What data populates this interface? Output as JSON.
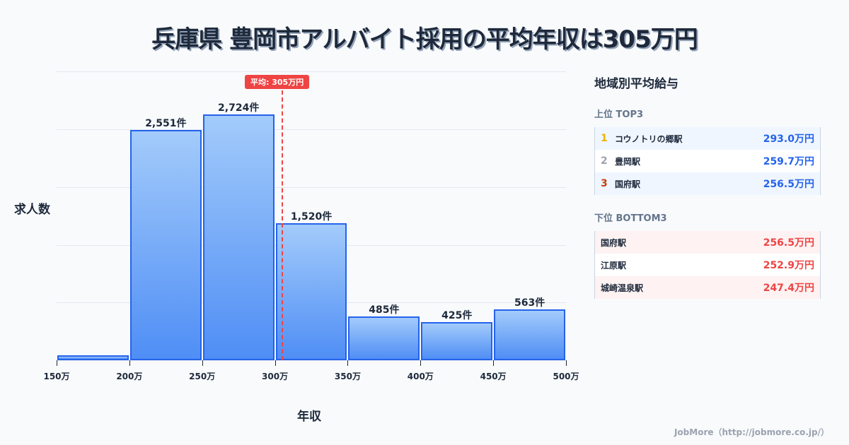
{
  "title": "兵庫県 豊岡市アルバイト採用の平均年収は305万円",
  "chart_data": {
    "type": "bar",
    "title": "兵庫県 豊岡市アルバイト採用の平均年収は305万円",
    "xlabel": "年収",
    "ylabel": "求人数",
    "categories": [
      "150-200万",
      "200-250万",
      "250-300万",
      "300-350万",
      "350-400万",
      "400-450万",
      "450-500万"
    ],
    "values": [
      55,
      2551,
      2724,
      1520,
      485,
      425,
      563
    ],
    "bar_labels": [
      "",
      "2,551件",
      "2,724件",
      "1,520件",
      "485件",
      "425件",
      "563件"
    ],
    "x_ticks": [
      "150万",
      "200万",
      "250万",
      "300万",
      "350万",
      "400万",
      "450万",
      "500万"
    ],
    "ylim": [
      0,
      3200
    ],
    "grid": true,
    "annotation": {
      "label": "平均: 305万円",
      "x": 305,
      "color": "#ef4444"
    },
    "bar_color": "#2563eb"
  },
  "sidebar": {
    "title": "地域別平均給与",
    "top_title": "上位 TOP3",
    "top": [
      {
        "rank": "1",
        "rank_color": "#eab308",
        "name": "コウノトリの郷駅",
        "value": "293.0万円"
      },
      {
        "rank": "2",
        "rank_color": "#9ca3af",
        "name": "豊岡駅",
        "value": "259.7万円"
      },
      {
        "rank": "3",
        "rank_color": "#c2410c",
        "name": "国府駅",
        "value": "256.5万円"
      }
    ],
    "bottom_title": "下位 BOTTOM3",
    "bottom": [
      {
        "name": "国府駅",
        "value": "256.5万円"
      },
      {
        "name": "江原駅",
        "value": "252.9万円"
      },
      {
        "name": "城崎温泉駅",
        "value": "247.4万円"
      }
    ]
  },
  "footer": "JobMore（http://jobmore.co.jp/）"
}
